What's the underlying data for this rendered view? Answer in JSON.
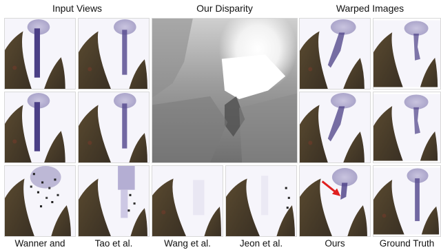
{
  "figure": {
    "headers": {
      "input_views": "Input Views",
      "our_disparity": "Our Disparity",
      "warped_images": "Warped Images"
    },
    "captions": [
      "Wanner and",
      "Tao et al.",
      "Wang et al.",
      "Jeon et al.",
      "Ours",
      "Ground Truth"
    ]
  },
  "colors": {
    "leaf": "#4a3d2a",
    "stem": "#4b3f86",
    "blossom": "#b9b3d3",
    "background": "#f6f5fb",
    "arrow": "#e02020"
  }
}
